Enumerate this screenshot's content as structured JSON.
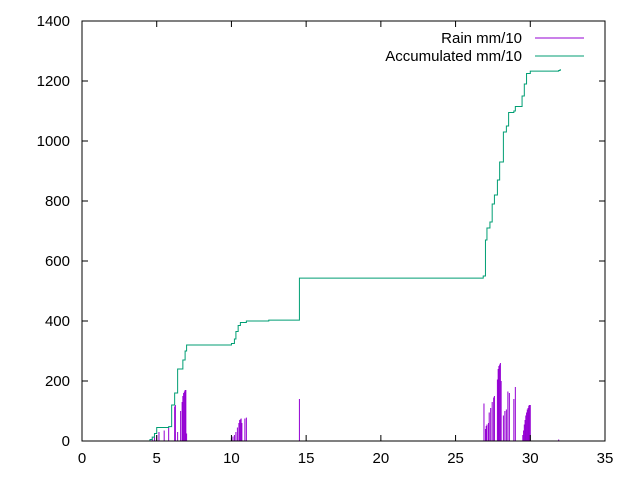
{
  "chart_data": {
    "type": "line",
    "title": "",
    "xlabel": "",
    "ylabel": "",
    "xlim": [
      0,
      35
    ],
    "ylim": [
      0,
      1400
    ],
    "x_ticks": [
      "0",
      "5",
      "10",
      "15",
      "20",
      "25",
      "30",
      "35"
    ],
    "y_ticks": [
      "0",
      "200",
      "400",
      "600",
      "800",
      "1000",
      "1200",
      "1400"
    ],
    "grid": false,
    "legend_position": "top-right",
    "series": [
      {
        "name": "Rain mm/10",
        "style": "impulses",
        "color": "#9400d3",
        "points": [
          [
            4.55,
            5
          ],
          [
            4.7,
            8
          ],
          [
            4.85,
            12
          ],
          [
            5.0,
            20
          ],
          [
            5.15,
            30
          ],
          [
            5.5,
            35
          ],
          [
            5.8,
            45
          ],
          [
            6.2,
            115
          ],
          [
            6.25,
            120
          ],
          [
            6.4,
            30
          ],
          [
            6.6,
            100
          ],
          [
            6.7,
            130
          ],
          [
            6.75,
            150
          ],
          [
            6.8,
            160
          ],
          [
            6.85,
            165
          ],
          [
            6.9,
            170
          ],
          [
            6.95,
            170
          ],
          [
            7.0,
            25
          ],
          [
            10.0,
            10
          ],
          [
            10.1,
            15
          ],
          [
            10.2,
            20
          ],
          [
            10.3,
            30
          ],
          [
            10.4,
            45
          ],
          [
            10.5,
            60
          ],
          [
            10.55,
            70
          ],
          [
            10.6,
            72
          ],
          [
            10.65,
            75
          ],
          [
            10.7,
            60
          ],
          [
            10.9,
            75
          ],
          [
            11.0,
            78
          ],
          [
            14.55,
            140
          ],
          [
            26.9,
            125
          ],
          [
            27.0,
            40
          ],
          [
            27.05,
            50
          ],
          [
            27.1,
            55
          ],
          [
            27.2,
            60
          ],
          [
            27.25,
            95
          ],
          [
            27.35,
            110
          ],
          [
            27.45,
            130
          ],
          [
            27.55,
            145
          ],
          [
            27.6,
            150
          ],
          [
            27.8,
            205
          ],
          [
            27.85,
            240
          ],
          [
            27.9,
            250
          ],
          [
            27.95,
            255
          ],
          [
            28.0,
            260
          ],
          [
            28.05,
            200
          ],
          [
            28.2,
            85
          ],
          [
            28.3,
            100
          ],
          [
            28.4,
            105
          ],
          [
            28.5,
            165
          ],
          [
            28.6,
            160
          ],
          [
            28.9,
            140
          ],
          [
            29.0,
            180
          ],
          [
            29.5,
            20
          ],
          [
            29.55,
            35
          ],
          [
            29.6,
            55
          ],
          [
            29.65,
            70
          ],
          [
            29.7,
            85
          ],
          [
            29.75,
            95
          ],
          [
            29.8,
            105
          ],
          [
            29.85,
            110
          ],
          [
            29.9,
            118
          ],
          [
            29.95,
            120
          ],
          [
            30.0,
            120
          ],
          [
            31.9,
            5
          ]
        ]
      },
      {
        "name": "Accumulated mm/10",
        "style": "steps",
        "color": "#009e73",
        "points": [
          [
            4.5,
            0
          ],
          [
            4.55,
            5
          ],
          [
            4.7,
            13
          ],
          [
            4.85,
            25
          ],
          [
            5.0,
            45
          ],
          [
            5.8,
            48
          ],
          [
            6.0,
            120
          ],
          [
            6.2,
            160
          ],
          [
            6.4,
            240
          ],
          [
            6.75,
            270
          ],
          [
            6.9,
            300
          ],
          [
            7.0,
            320
          ],
          [
            10.0,
            325
          ],
          [
            10.2,
            340
          ],
          [
            10.3,
            365
          ],
          [
            10.45,
            385
          ],
          [
            10.6,
            395
          ],
          [
            11.0,
            400
          ],
          [
            12.5,
            403
          ],
          [
            14.55,
            543
          ],
          [
            26.85,
            550
          ],
          [
            27.0,
            670
          ],
          [
            27.1,
            710
          ],
          [
            27.3,
            730
          ],
          [
            27.45,
            790
          ],
          [
            27.6,
            820
          ],
          [
            27.8,
            870
          ],
          [
            27.95,
            930
          ],
          [
            28.2,
            1030
          ],
          [
            28.4,
            1050
          ],
          [
            28.55,
            1095
          ],
          [
            28.9,
            1100
          ],
          [
            29.0,
            1115
          ],
          [
            29.45,
            1150
          ],
          [
            29.6,
            1190
          ],
          [
            29.75,
            1225
          ],
          [
            30.0,
            1233
          ],
          [
            31.9,
            1235
          ],
          [
            32.0,
            1240
          ]
        ]
      }
    ]
  }
}
